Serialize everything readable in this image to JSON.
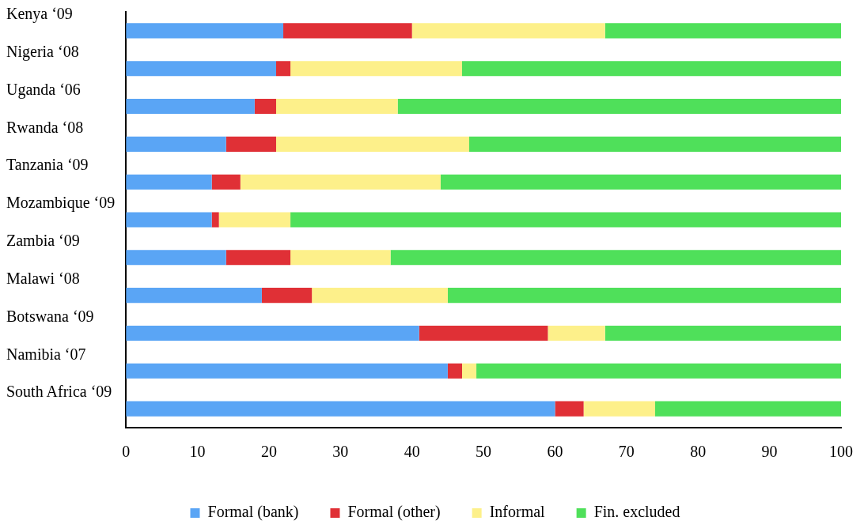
{
  "chart_data": {
    "type": "bar",
    "orientation": "horizontal",
    "stacked": true,
    "categories": [
      "Kenya ‘09",
      "Nigeria ‘08",
      "Uganda ‘06",
      "Rwanda ‘08",
      "Tanzania ‘09",
      "Mozambique ‘09",
      "Zambia ‘09",
      "Malawi ‘08",
      "Botswana ‘09",
      "Namibia ‘07",
      "South Africa ‘09"
    ],
    "series": [
      {
        "name": "Formal (bank)",
        "color": "#5aa5f5",
        "values": [
          22,
          21,
          18,
          14,
          12,
          12,
          14,
          19,
          41,
          45,
          60
        ]
      },
      {
        "name": "Formal (other)",
        "color": "#e03036",
        "values": [
          18,
          2,
          3,
          7,
          4,
          1,
          9,
          7,
          18,
          2,
          4
        ]
      },
      {
        "name": "Informal",
        "color": "#fdf08a",
        "values": [
          27,
          24,
          17,
          27,
          28,
          10,
          14,
          19,
          8,
          2,
          10
        ]
      },
      {
        "name": "Fin. excluded",
        "color": "#4fe05a",
        "values": [
          33,
          53,
          62,
          52,
          56,
          77,
          63,
          55,
          33,
          51,
          26
        ]
      }
    ],
    "xlim": [
      0,
      100
    ],
    "xticks": [
      0,
      10,
      20,
      30,
      40,
      50,
      60,
      70,
      80,
      90,
      100
    ],
    "grid": false,
    "legend": "bottom"
  }
}
